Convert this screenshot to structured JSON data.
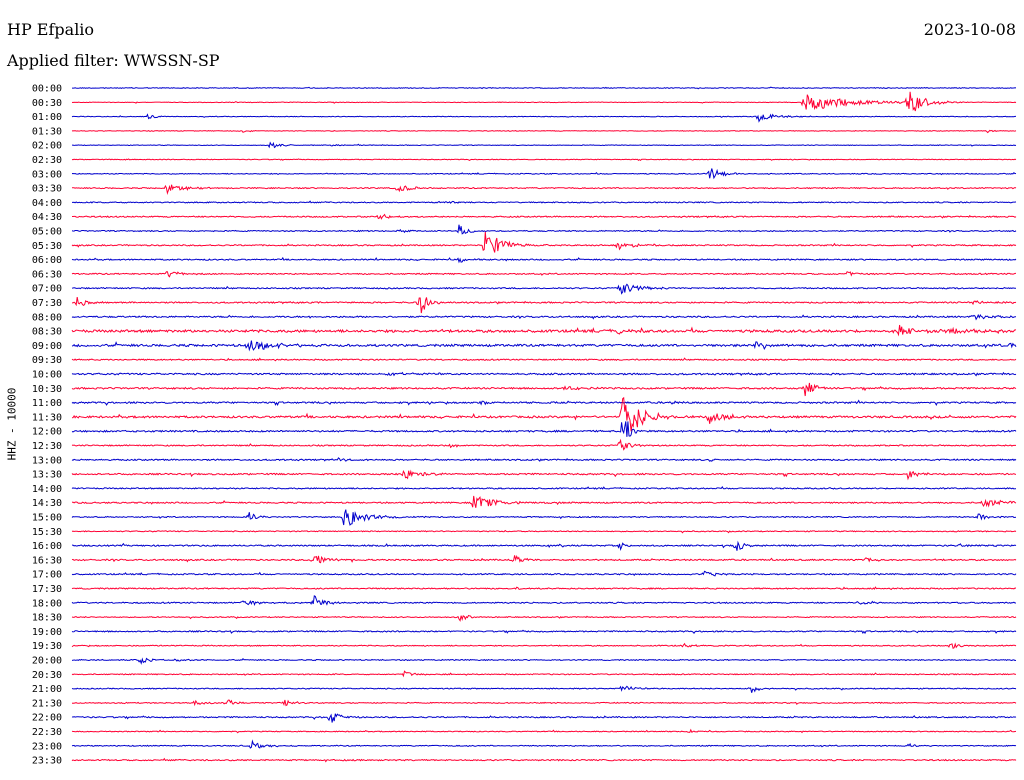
{
  "header": {
    "station": "HP Efpalio",
    "date": "2023-10-08",
    "filter": "Applied filter: WWSSN-SP"
  },
  "colors": {
    "blue": "#0000cc",
    "red": "#ff0033"
  },
  "chart_data": {
    "type": "line",
    "title": "HP Efpalio",
    "ylabel": "HHZ - 10000",
    "grid": false,
    "row_color_order": [
      "blue",
      "red"
    ],
    "rows": [
      {
        "label": "00:00",
        "noise": 0.6,
        "events": [
          {
            "t": 0.74,
            "amp": 1.2,
            "dur": 0.01
          }
        ]
      },
      {
        "label": "00:30",
        "noise": 0.5,
        "events": [
          {
            "t": 0.775,
            "amp": 10,
            "dur": 0.05
          },
          {
            "t": 0.885,
            "amp": 14,
            "dur": 0.02
          }
        ]
      },
      {
        "label": "01:00",
        "noise": 0.5,
        "events": [
          {
            "t": 0.08,
            "amp": 2.5,
            "dur": 0.01
          },
          {
            "t": 0.725,
            "amp": 6,
            "dur": 0.02
          }
        ]
      },
      {
        "label": "01:30",
        "noise": 0.5,
        "events": [
          {
            "t": 0.18,
            "amp": 1.5,
            "dur": 0.01
          },
          {
            "t": 0.97,
            "amp": 1.5,
            "dur": 0.01
          }
        ]
      },
      {
        "label": "02:00",
        "noise": 0.5,
        "events": [
          {
            "t": 0.21,
            "amp": 5,
            "dur": 0.01
          },
          {
            "t": 0.275,
            "amp": 1.5,
            "dur": 0.01
          }
        ]
      },
      {
        "label": "02:30",
        "noise": 0.5,
        "events": [
          {
            "t": 0.05,
            "amp": 1.2,
            "dur": 0.01
          }
        ]
      },
      {
        "label": "03:00",
        "noise": 0.7,
        "events": [
          {
            "t": 0.675,
            "amp": 7,
            "dur": 0.015
          }
        ]
      },
      {
        "label": "03:30",
        "noise": 0.9,
        "events": [
          {
            "t": 0.1,
            "amp": 5,
            "dur": 0.02
          },
          {
            "t": 0.345,
            "amp": 4,
            "dur": 0.015
          }
        ]
      },
      {
        "label": "04:00",
        "noise": 0.9,
        "events": [
          {
            "t": 0.39,
            "amp": 1.5,
            "dur": 0.02
          }
        ]
      },
      {
        "label": "04:30",
        "noise": 1.0,
        "events": [
          {
            "t": 0.325,
            "amp": 4,
            "dur": 0.01
          }
        ]
      },
      {
        "label": "05:00",
        "noise": 0.9,
        "events": [
          {
            "t": 0.41,
            "amp": 6,
            "dur": 0.01
          },
          {
            "t": 0.345,
            "amp": 2,
            "dur": 0.01
          }
        ]
      },
      {
        "label": "05:30",
        "noise": 1.0,
        "events": [
          {
            "t": 0.437,
            "amp": 16,
            "dur": 0.02
          },
          {
            "t": 0.578,
            "amp": 6,
            "dur": 0.015
          }
        ]
      },
      {
        "label": "06:00",
        "noise": 1.0,
        "events": [
          {
            "t": 0.41,
            "amp": 3,
            "dur": 0.01
          }
        ]
      },
      {
        "label": "06:30",
        "noise": 1.0,
        "events": [
          {
            "t": 0.1,
            "amp": 3,
            "dur": 0.02
          },
          {
            "t": 0.82,
            "amp": 3,
            "dur": 0.01
          }
        ]
      },
      {
        "label": "07:00",
        "noise": 1.0,
        "events": [
          {
            "t": 0.58,
            "amp": 7,
            "dur": 0.02
          }
        ]
      },
      {
        "label": "07:30",
        "noise": 1.1,
        "events": [
          {
            "t": 0.005,
            "amp": 6,
            "dur": 0.01
          },
          {
            "t": 0.367,
            "amp": 16,
            "dur": 0.01
          },
          {
            "t": 0.95,
            "amp": 2,
            "dur": 0.04
          }
        ]
      },
      {
        "label": "08:00",
        "noise": 1.2,
        "events": [
          {
            "t": 0.955,
            "amp": 3,
            "dur": 0.03
          }
        ]
      },
      {
        "label": "08:30",
        "noise": 2.0,
        "events": [
          {
            "t": 0.575,
            "amp": 4,
            "dur": 0.01
          },
          {
            "t": 0.873,
            "amp": 7,
            "dur": 0.02
          },
          {
            "t": 0.92,
            "amp": 3,
            "dur": 0.04
          }
        ]
      },
      {
        "label": "09:00",
        "noise": 1.8,
        "events": [
          {
            "t": 0.185,
            "amp": 7,
            "dur": 0.03
          },
          {
            "t": 0.725,
            "amp": 8,
            "dur": 0.01
          },
          {
            "t": 0.99,
            "amp": 4,
            "dur": 0.01
          }
        ]
      },
      {
        "label": "09:30",
        "noise": 1.0,
        "events": []
      },
      {
        "label": "10:00",
        "noise": 1.3,
        "events": [
          {
            "t": 0.33,
            "amp": 2,
            "dur": 0.03
          }
        ]
      },
      {
        "label": "10:30",
        "noise": 1.3,
        "events": [
          {
            "t": 0.52,
            "amp": 2,
            "dur": 0.02
          },
          {
            "t": 0.776,
            "amp": 12,
            "dur": 0.01
          }
        ]
      },
      {
        "label": "11:00",
        "noise": 1.3,
        "events": [
          {
            "t": 0.635,
            "amp": 3,
            "dur": 0.01
          },
          {
            "t": 0.43,
            "amp": 2,
            "dur": 0.02
          }
        ]
      },
      {
        "label": "11:30",
        "noise": 1.6,
        "events": [
          {
            "t": 0.583,
            "amp": 28,
            "dur": 0.02
          },
          {
            "t": 0.675,
            "amp": 8,
            "dur": 0.015
          }
        ]
      },
      {
        "label": "12:00",
        "noise": 1.3,
        "events": [
          {
            "t": 0.584,
            "amp": 34,
            "dur": 0.005
          }
        ]
      },
      {
        "label": "12:30",
        "noise": 1.0,
        "events": [
          {
            "t": 0.4,
            "amp": 2,
            "dur": 0.01
          },
          {
            "t": 0.58,
            "amp": 8,
            "dur": 0.01
          }
        ]
      },
      {
        "label": "13:00",
        "noise": 1.1,
        "events": [
          {
            "t": 0.28,
            "amp": 2.5,
            "dur": 0.01
          },
          {
            "t": 0.675,
            "amp": 2,
            "dur": 0.01
          }
        ]
      },
      {
        "label": "13:30",
        "noise": 1.2,
        "events": [
          {
            "t": 0.349,
            "amp": 6,
            "dur": 0.02
          },
          {
            "t": 0.885,
            "amp": 6,
            "dur": 0.01
          }
        ]
      },
      {
        "label": "14:00",
        "noise": 1.0,
        "events": []
      },
      {
        "label": "14:30",
        "noise": 1.1,
        "events": [
          {
            "t": 0.424,
            "amp": 8,
            "dur": 0.025
          },
          {
            "t": 0.965,
            "amp": 4,
            "dur": 0.03
          }
        ]
      },
      {
        "label": "15:00",
        "noise": 0.9,
        "events": [
          {
            "t": 0.287,
            "amp": 12,
            "dur": 0.025
          },
          {
            "t": 0.187,
            "amp": 5,
            "dur": 0.01
          },
          {
            "t": 0.96,
            "amp": 4,
            "dur": 0.01
          }
        ]
      },
      {
        "label": "15:30",
        "noise": 0.8,
        "events": []
      },
      {
        "label": "16:00",
        "noise": 1.1,
        "events": [
          {
            "t": 0.58,
            "amp": 4,
            "dur": 0.01
          },
          {
            "t": 0.703,
            "amp": 7,
            "dur": 0.01
          },
          {
            "t": 0.94,
            "amp": 2,
            "dur": 0.01
          }
        ]
      },
      {
        "label": "16:30",
        "noise": 1.1,
        "events": [
          {
            "t": 0.255,
            "amp": 7,
            "dur": 0.015
          },
          {
            "t": 0.468,
            "amp": 6,
            "dur": 0.01
          },
          {
            "t": 0.84,
            "amp": 3,
            "dur": 0.01
          }
        ]
      },
      {
        "label": "17:00",
        "noise": 1.0,
        "events": [
          {
            "t": 0.668,
            "amp": 3,
            "dur": 0.02
          }
        ]
      },
      {
        "label": "17:30",
        "noise": 1.0,
        "events": [
          {
            "t": 0.47,
            "amp": 2,
            "dur": 0.01
          }
        ]
      },
      {
        "label": "18:00",
        "noise": 1.0,
        "events": [
          {
            "t": 0.255,
            "amp": 8,
            "dur": 0.015
          },
          {
            "t": 0.18,
            "amp": 3,
            "dur": 0.02
          },
          {
            "t": 0.83,
            "amp": 2,
            "dur": 0.03
          }
        ]
      },
      {
        "label": "18:30",
        "noise": 0.8,
        "events": [
          {
            "t": 0.41,
            "amp": 5,
            "dur": 0.01
          }
        ]
      },
      {
        "label": "19:00",
        "noise": 1.0,
        "events": []
      },
      {
        "label": "19:30",
        "noise": 0.8,
        "events": [
          {
            "t": 0.648,
            "amp": 3,
            "dur": 0.01
          },
          {
            "t": 0.93,
            "amp": 4,
            "dur": 0.01
          }
        ]
      },
      {
        "label": "20:00",
        "noise": 0.8,
        "events": [
          {
            "t": 0.073,
            "amp": 4,
            "dur": 0.01
          },
          {
            "t": 0.11,
            "amp": 2,
            "dur": 0.01
          }
        ]
      },
      {
        "label": "20:30",
        "noise": 0.8,
        "events": [
          {
            "t": 0.352,
            "amp": 4,
            "dur": 0.01
          }
        ]
      },
      {
        "label": "21:00",
        "noise": 0.8,
        "events": [
          {
            "t": 0.583,
            "amp": 5,
            "dur": 0.01
          },
          {
            "t": 0.718,
            "amp": 5,
            "dur": 0.01
          }
        ]
      },
      {
        "label": "21:30",
        "noise": 0.8,
        "events": [
          {
            "t": 0.13,
            "amp": 3,
            "dur": 0.01
          },
          {
            "t": 0.165,
            "amp": 4,
            "dur": 0.01
          },
          {
            "t": 0.225,
            "amp": 4,
            "dur": 0.01
          }
        ]
      },
      {
        "label": "22:00",
        "noise": 1.0,
        "events": [
          {
            "t": 0.272,
            "amp": 9,
            "dur": 0.01
          }
        ]
      },
      {
        "label": "22:30",
        "noise": 0.7,
        "events": [
          {
            "t": 0.655,
            "amp": 2,
            "dur": 0.01
          }
        ]
      },
      {
        "label": "23:00",
        "noise": 0.8,
        "events": [
          {
            "t": 0.19,
            "amp": 5,
            "dur": 0.015
          },
          {
            "t": 0.885,
            "amp": 2,
            "dur": 0.01
          }
        ]
      },
      {
        "label": "23:30",
        "noise": 1.0,
        "events": []
      }
    ]
  }
}
